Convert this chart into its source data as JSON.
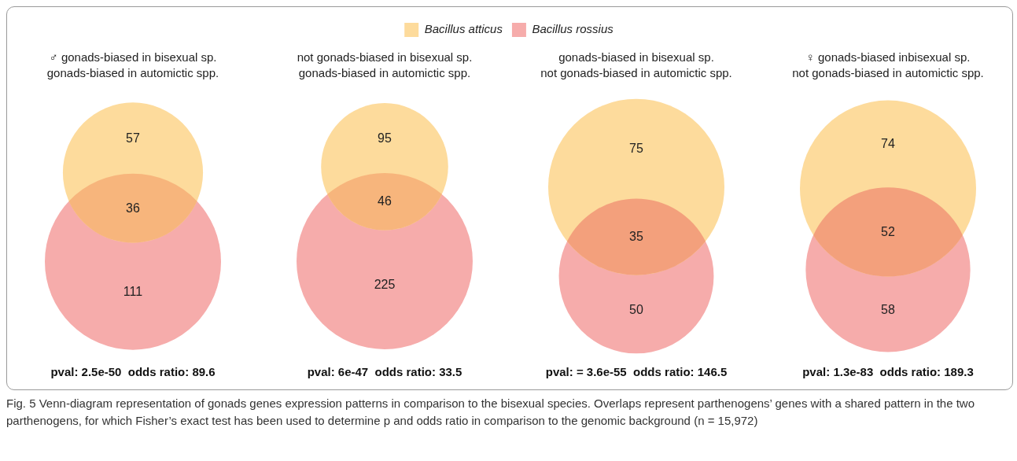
{
  "chart_data": [
    {
      "type": "other",
      "legend": "top",
      "series": [
        {
          "name": "Bacillus atticus",
          "color": "#fddb9c"
        },
        {
          "name": "Bacillus rossius",
          "color": "#f6acab"
        }
      ]
    },
    {
      "type": "other",
      "title": "♂ gonads-biased in bisexual sp.",
      "subtitle": "gonads-biased in automictic spp.",
      "values": [
        57,
        36,
        111
      ],
      "data_labels": true,
      "colors": [
        "#fddb9c",
        "#f7b57c",
        "#f6acab"
      ],
      "annotations": [
        "pval: 2.5e-50  odds ratio: 89.6"
      ]
    },
    {
      "type": "other",
      "title": "not gonads-biased in bisexual sp.",
      "subtitle": "gonads-biased in automictic spp.",
      "values": [
        95,
        46,
        225
      ],
      "data_labels": true,
      "colors": [
        "#fddb9c",
        "#f7b57c",
        "#f6acab"
      ],
      "annotations": [
        "pval: 6e-47  odds ratio: 33.5"
      ]
    },
    {
      "type": "other",
      "title": "gonads-biased in bisexual sp.",
      "subtitle": "not gonads-biased in automictic spp.",
      "values": [
        75,
        35,
        50
      ],
      "data_labels": true,
      "colors": [
        "#fddb9c",
        "#f3a07c",
        "#f6acab"
      ],
      "annotations": [
        "pval: = 3.6e-55  odds ratio: 146.5"
      ]
    },
    {
      "type": "other",
      "title": "♀ gonads-biased inbisexual sp.",
      "subtitle": "not gonads-biased in automictic spp.",
      "values": [
        74,
        52,
        58
      ],
      "data_labels": true,
      "colors": [
        "#fddb9c",
        "#f3a07c",
        "#f6acab"
      ],
      "annotations": [
        "pval: 1.3e-83  odds ratio: 189.3",
        "Fig. 5 Venn-diagram representation of gonads genes expression patterns in comparison to the bisexual species. Overlaps represent parthenogens’ genes with a shared pattern in the two parthenogens, for which Fisher’s exact test has been used to determine p and odds ratio in comparison to the genomic background (n = 15,972)"
      ]
    }
  ]
}
